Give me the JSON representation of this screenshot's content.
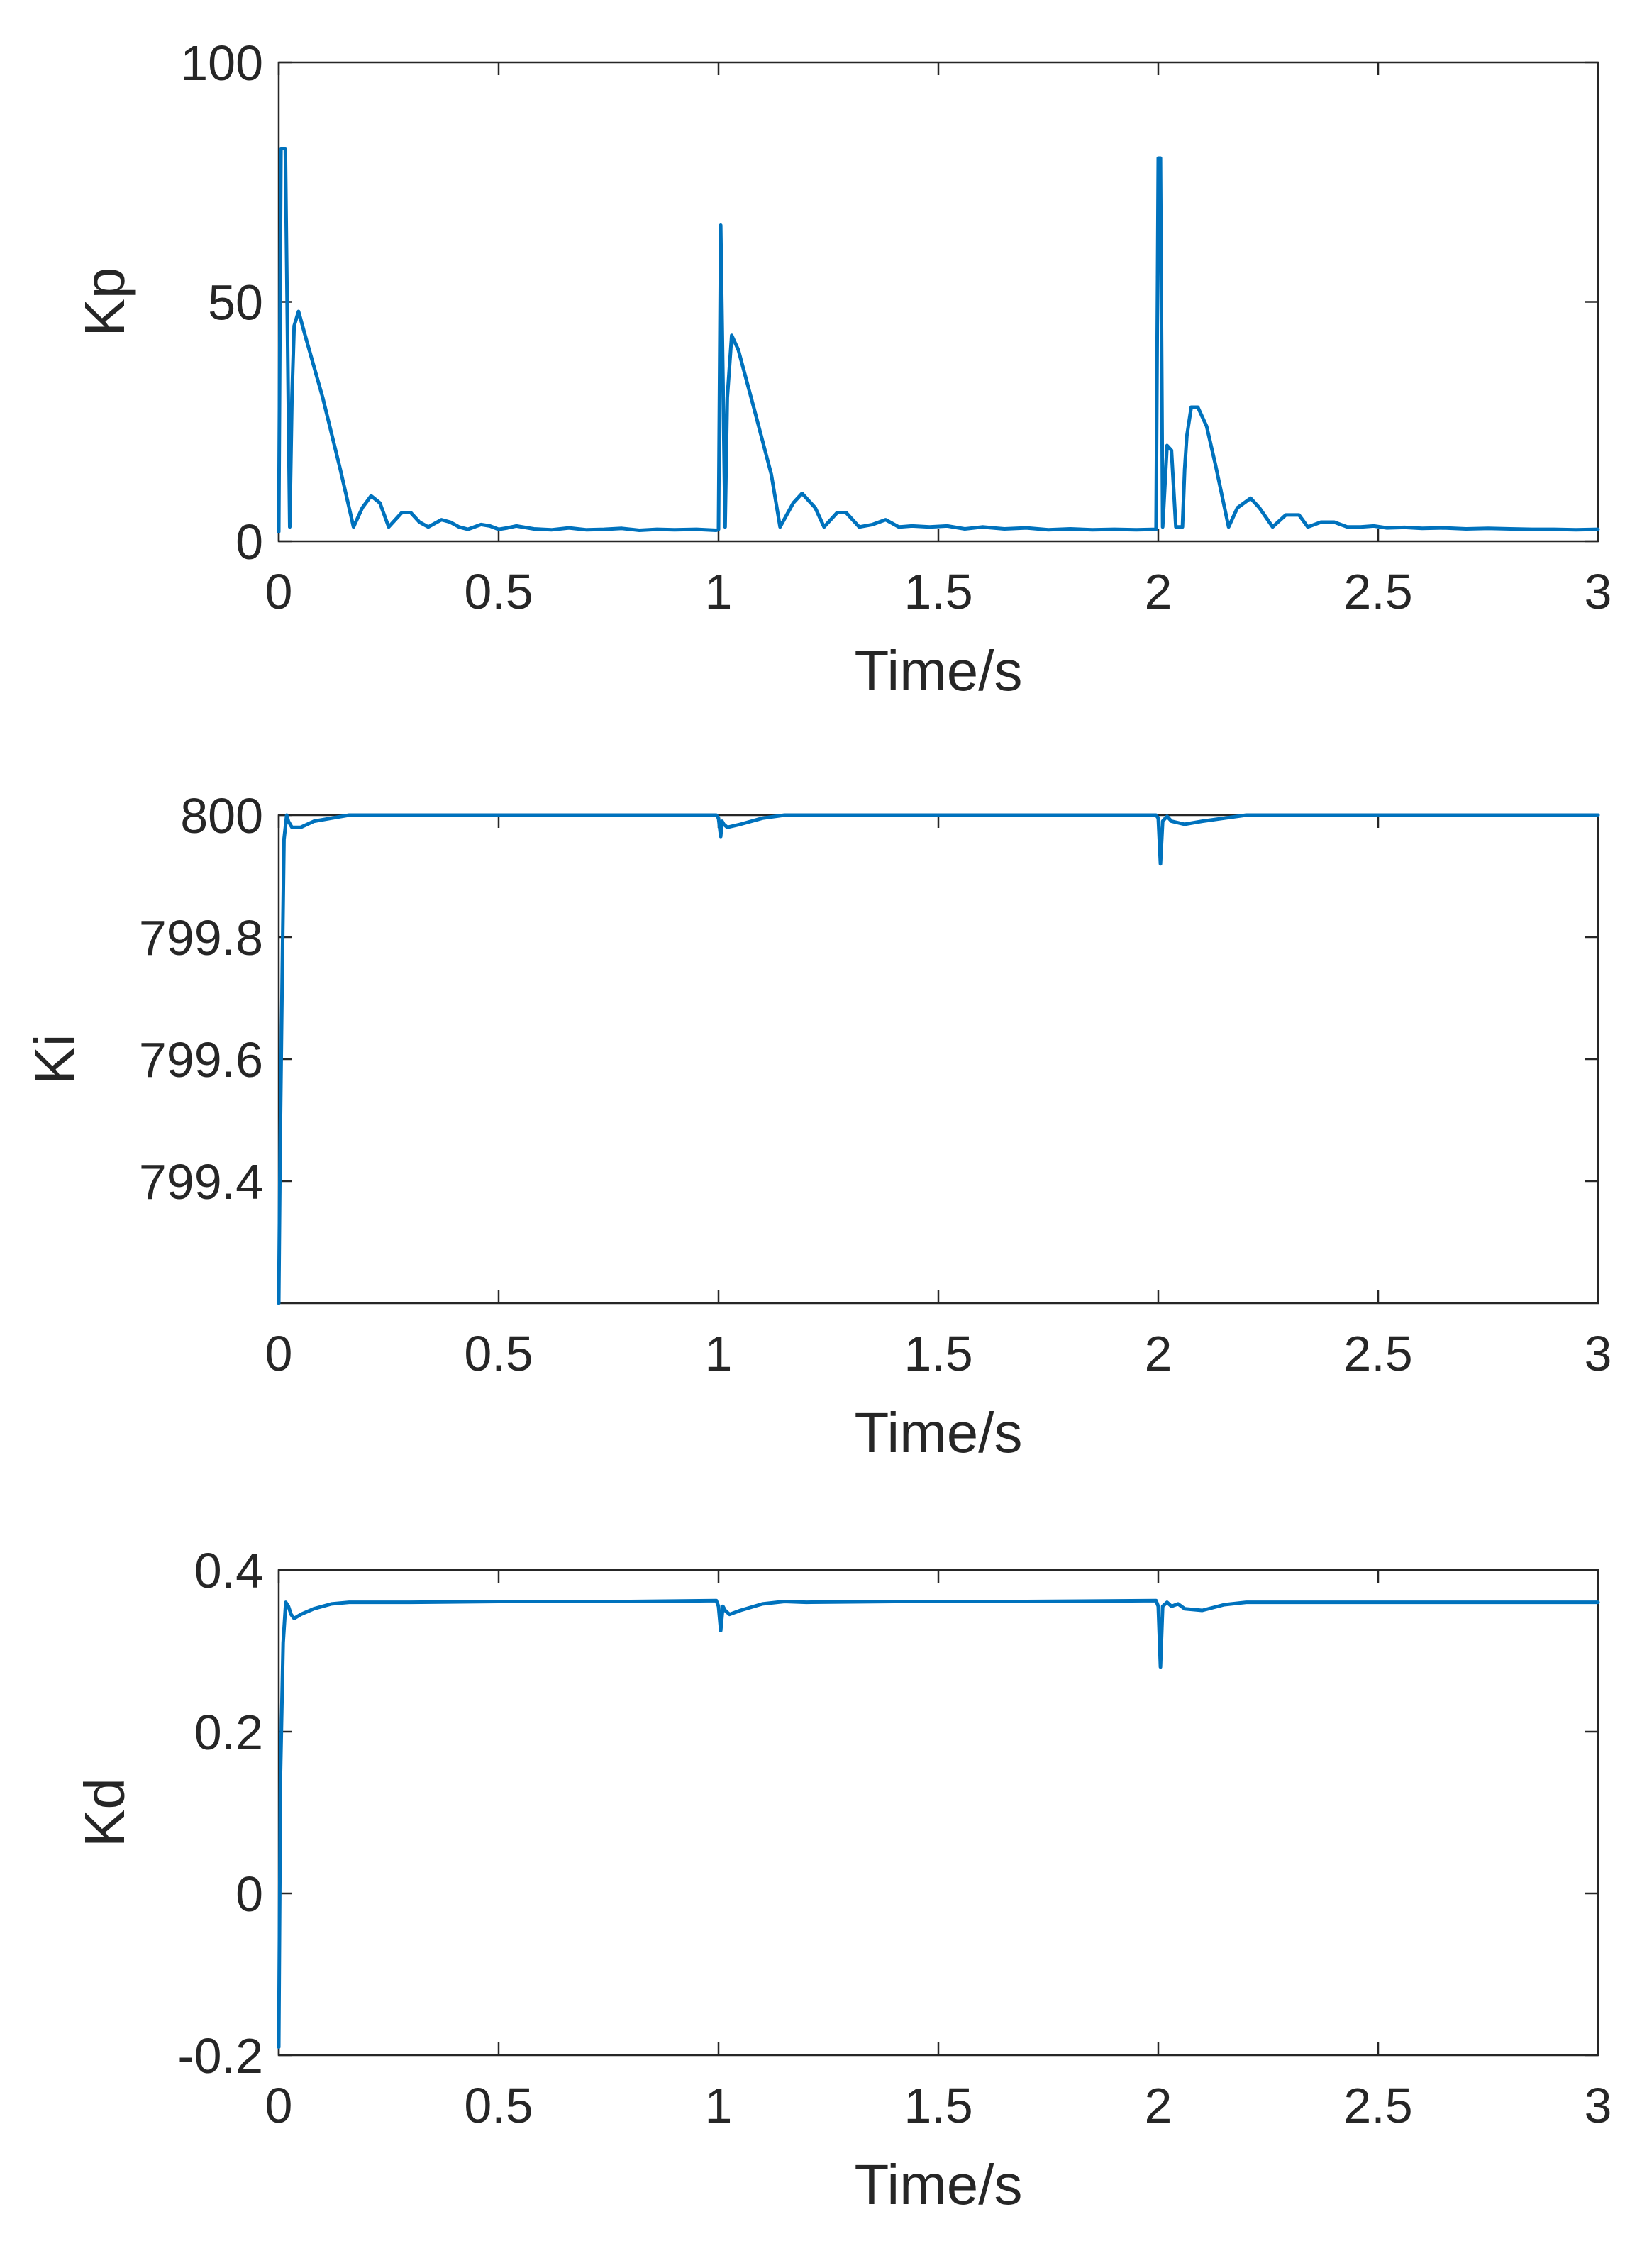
{
  "chart_data": [
    {
      "type": "line",
      "ylabel": "Kp",
      "xlabel": "Time/s",
      "xlim": [
        0,
        3
      ],
      "ylim": [
        0,
        100
      ],
      "xticks": [
        "0",
        "0.5",
        "1",
        "1.5",
        "2",
        "2.5",
        "3"
      ],
      "yticks": [
        "0",
        "50",
        "100"
      ],
      "grid": false,
      "series": [
        {
          "color": "#0072BD",
          "x": [
            0.0,
            0.005,
            0.015,
            0.025,
            0.03,
            0.035,
            0.045,
            0.06,
            0.1,
            0.14,
            0.17,
            0.19,
            0.21,
            0.23,
            0.25,
            0.28,
            0.3,
            0.32,
            0.34,
            0.37,
            0.39,
            0.41,
            0.43,
            0.46,
            0.48,
            0.5,
            0.52,
            0.54,
            0.58,
            0.62,
            0.66,
            0.7,
            0.74,
            0.78,
            0.82,
            0.86,
            0.9,
            0.95,
            0.995,
            1.0,
            1.005,
            1.015,
            1.02,
            1.03,
            1.045,
            1.08,
            1.12,
            1.14,
            1.17,
            1.19,
            1.22,
            1.24,
            1.27,
            1.29,
            1.32,
            1.35,
            1.38,
            1.41,
            1.44,
            1.48,
            1.52,
            1.56,
            1.6,
            1.65,
            1.7,
            1.75,
            1.8,
            1.85,
            1.9,
            1.95,
            1.995,
            2.0,
            2.005,
            2.01,
            2.02,
            2.03,
            2.04,
            2.055,
            2.06,
            2.065,
            2.075,
            2.09,
            2.11,
            2.13,
            2.16,
            2.18,
            2.21,
            2.23,
            2.26,
            2.29,
            2.32,
            2.34,
            2.37,
            2.4,
            2.43,
            2.46,
            2.49,
            2.52,
            2.56,
            2.6,
            2.65,
            2.7,
            2.75,
            2.8,
            2.85,
            2.9,
            2.95,
            3.0
          ],
          "values": [
            2,
            82,
            82,
            3,
            30,
            45,
            48,
            43,
            30,
            15,
            3,
            7,
            9.5,
            8,
            3,
            6,
            6,
            4,
            3,
            4.5,
            4,
            3,
            2.5,
            3.5,
            3.2,
            2.5,
            2.8,
            3.2,
            2.6,
            2.4,
            2.8,
            2.4,
            2.5,
            2.7,
            2.3,
            2.5,
            2.4,
            2.5,
            2.3,
            2.5,
            66,
            3,
            30,
            43,
            40,
            28,
            14,
            3,
            8,
            10,
            7,
            3,
            6,
            6,
            3,
            3.5,
            4.5,
            3,
            3.2,
            3,
            3.2,
            2.6,
            3,
            2.6,
            2.8,
            2.4,
            2.6,
            2.4,
            2.5,
            2.4,
            2.5,
            80,
            80,
            3,
            20,
            19,
            3,
            3,
            15,
            22,
            28,
            28,
            24,
            16,
            3,
            7,
            9,
            7,
            3,
            5.5,
            5.5,
            3,
            4,
            4,
            3,
            3,
            3.2,
            2.8,
            2.9,
            2.7,
            2.8,
            2.6,
            2.7,
            2.6,
            2.5,
            2.5,
            2.4,
            2.5
          ]
        }
      ]
    },
    {
      "type": "line",
      "ylabel": "Ki",
      "xlabel": "Time/s",
      "xlim": [
        0,
        3
      ],
      "ylim": [
        799.2,
        800
      ],
      "xticks": [
        "0",
        "0.5",
        "1",
        "1.5",
        "2",
        "2.5",
        "3"
      ],
      "yticks": [
        "799.4",
        "799.6",
        "799.8",
        "800"
      ],
      "grid": false,
      "series": [
        {
          "color": "#0072BD",
          "x": [
            0.0,
            0.003,
            0.008,
            0.012,
            0.018,
            0.022,
            0.03,
            0.05,
            0.08,
            0.12,
            0.16,
            0.2,
            0.3,
            0.5,
            0.7,
            0.995,
            1.0,
            1.005,
            1.008,
            1.012,
            1.02,
            1.05,
            1.1,
            1.15,
            1.2,
            1.4,
            1.7,
            1.995,
            2.0,
            2.005,
            2.01,
            2.02,
            2.03,
            2.06,
            2.1,
            2.15,
            2.2,
            2.3,
            2.6,
            3.0
          ],
          "values": [
            799.2,
            799.45,
            799.75,
            799.96,
            800.0,
            799.99,
            799.98,
            799.98,
            799.99,
            799.995,
            800.0,
            800.0,
            800.0,
            800.0,
            800.0,
            800.0,
            799.995,
            799.965,
            799.99,
            799.985,
            799.98,
            799.985,
            799.995,
            800.0,
            800.0,
            800.0,
            800.0,
            800.0,
            799.995,
            799.92,
            799.99,
            799.998,
            799.99,
            799.985,
            799.99,
            799.995,
            800.0,
            800.0,
            800.0,
            800.0
          ]
        }
      ]
    },
    {
      "type": "line",
      "ylabel": "Kd",
      "xlabel": "Time/s",
      "xlim": [
        0,
        3
      ],
      "ylim": [
        -0.2,
        0.4
      ],
      "xticks": [
        "0",
        "0.5",
        "1",
        "1.5",
        "2",
        "2.5",
        "3"
      ],
      "yticks": [
        "-0.2",
        "0",
        "0.2",
        "0.4"
      ],
      "grid": false,
      "series": [
        {
          "color": "#0072BD",
          "x": [
            0.0,
            0.004,
            0.01,
            0.016,
            0.022,
            0.028,
            0.035,
            0.05,
            0.08,
            0.12,
            0.16,
            0.2,
            0.3,
            0.5,
            0.8,
            0.995,
            1.0,
            1.005,
            1.01,
            1.015,
            1.025,
            1.05,
            1.1,
            1.15,
            1.2,
            1.4,
            1.7,
            1.995,
            2.0,
            2.005,
            2.01,
            2.02,
            2.03,
            2.045,
            2.06,
            2.1,
            2.15,
            2.2,
            2.3,
            2.6,
            3.0
          ],
          "values": [
            -0.19,
            0.15,
            0.31,
            0.36,
            0.355,
            0.345,
            0.34,
            0.345,
            0.352,
            0.358,
            0.36,
            0.36,
            0.36,
            0.361,
            0.361,
            0.362,
            0.355,
            0.325,
            0.355,
            0.35,
            0.345,
            0.35,
            0.358,
            0.361,
            0.36,
            0.361,
            0.361,
            0.362,
            0.355,
            0.28,
            0.355,
            0.36,
            0.355,
            0.358,
            0.352,
            0.35,
            0.357,
            0.36,
            0.36,
            0.36,
            0.36
          ]
        }
      ]
    }
  ]
}
